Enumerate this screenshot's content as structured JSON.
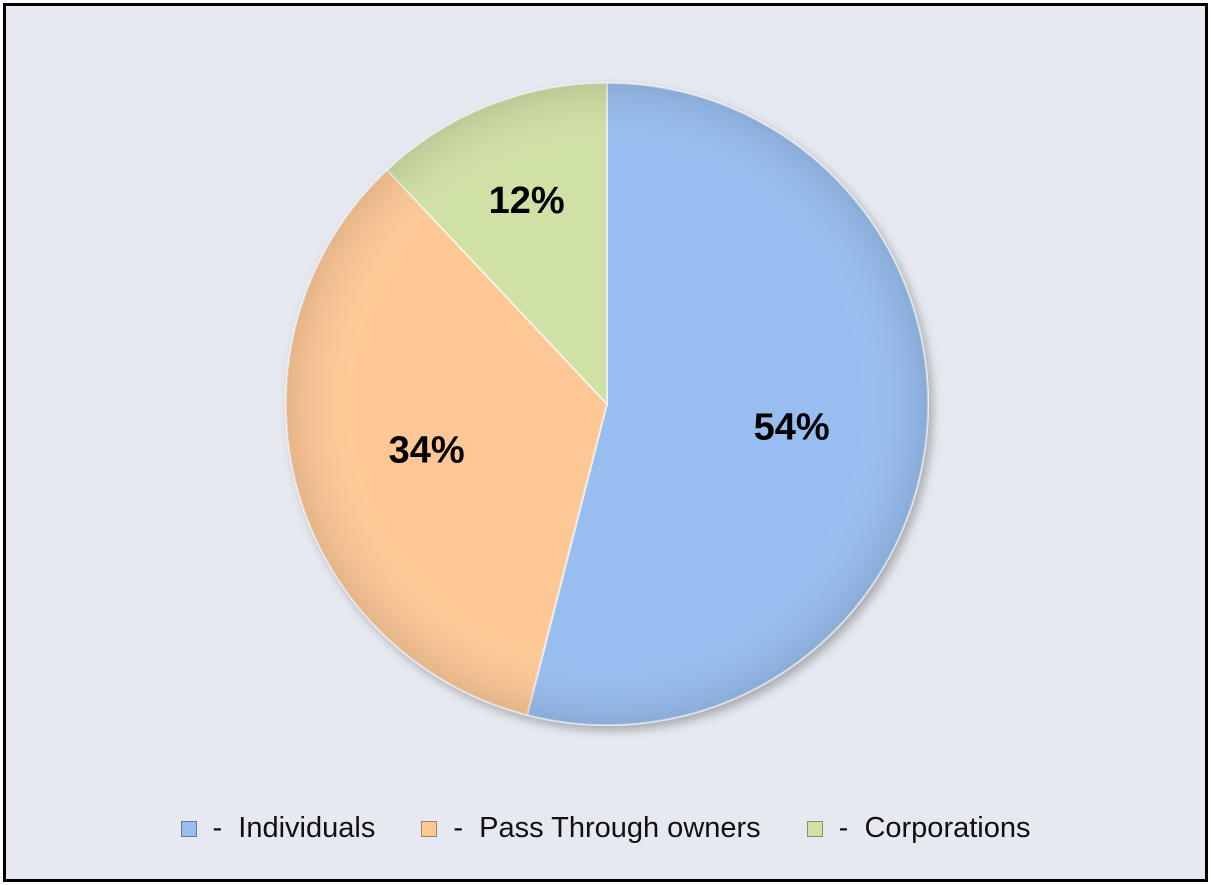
{
  "chart_data": {
    "type": "pie",
    "title": "",
    "slices": [
      {
        "label": "Individuals",
        "value": 54,
        "display": "54%",
        "color": "#98bef0"
      },
      {
        "label": "Pass Through owners",
        "value": 34,
        "display": "34%",
        "color": "#fec896"
      },
      {
        "label": "Corporations",
        "value": 12,
        "display": "12%",
        "color": "#d0e1a6"
      }
    ],
    "start_angle": "12 o'clock",
    "direction": "clockwise",
    "legend": {
      "position": "bottom",
      "separator": "-",
      "items": [
        {
          "text": "Individuals",
          "color": "#98bef0"
        },
        {
          "text": "Pass Through owners",
          "color": "#fec896"
        },
        {
          "text": "Corporations",
          "color": "#d0e1a6"
        }
      ]
    }
  }
}
